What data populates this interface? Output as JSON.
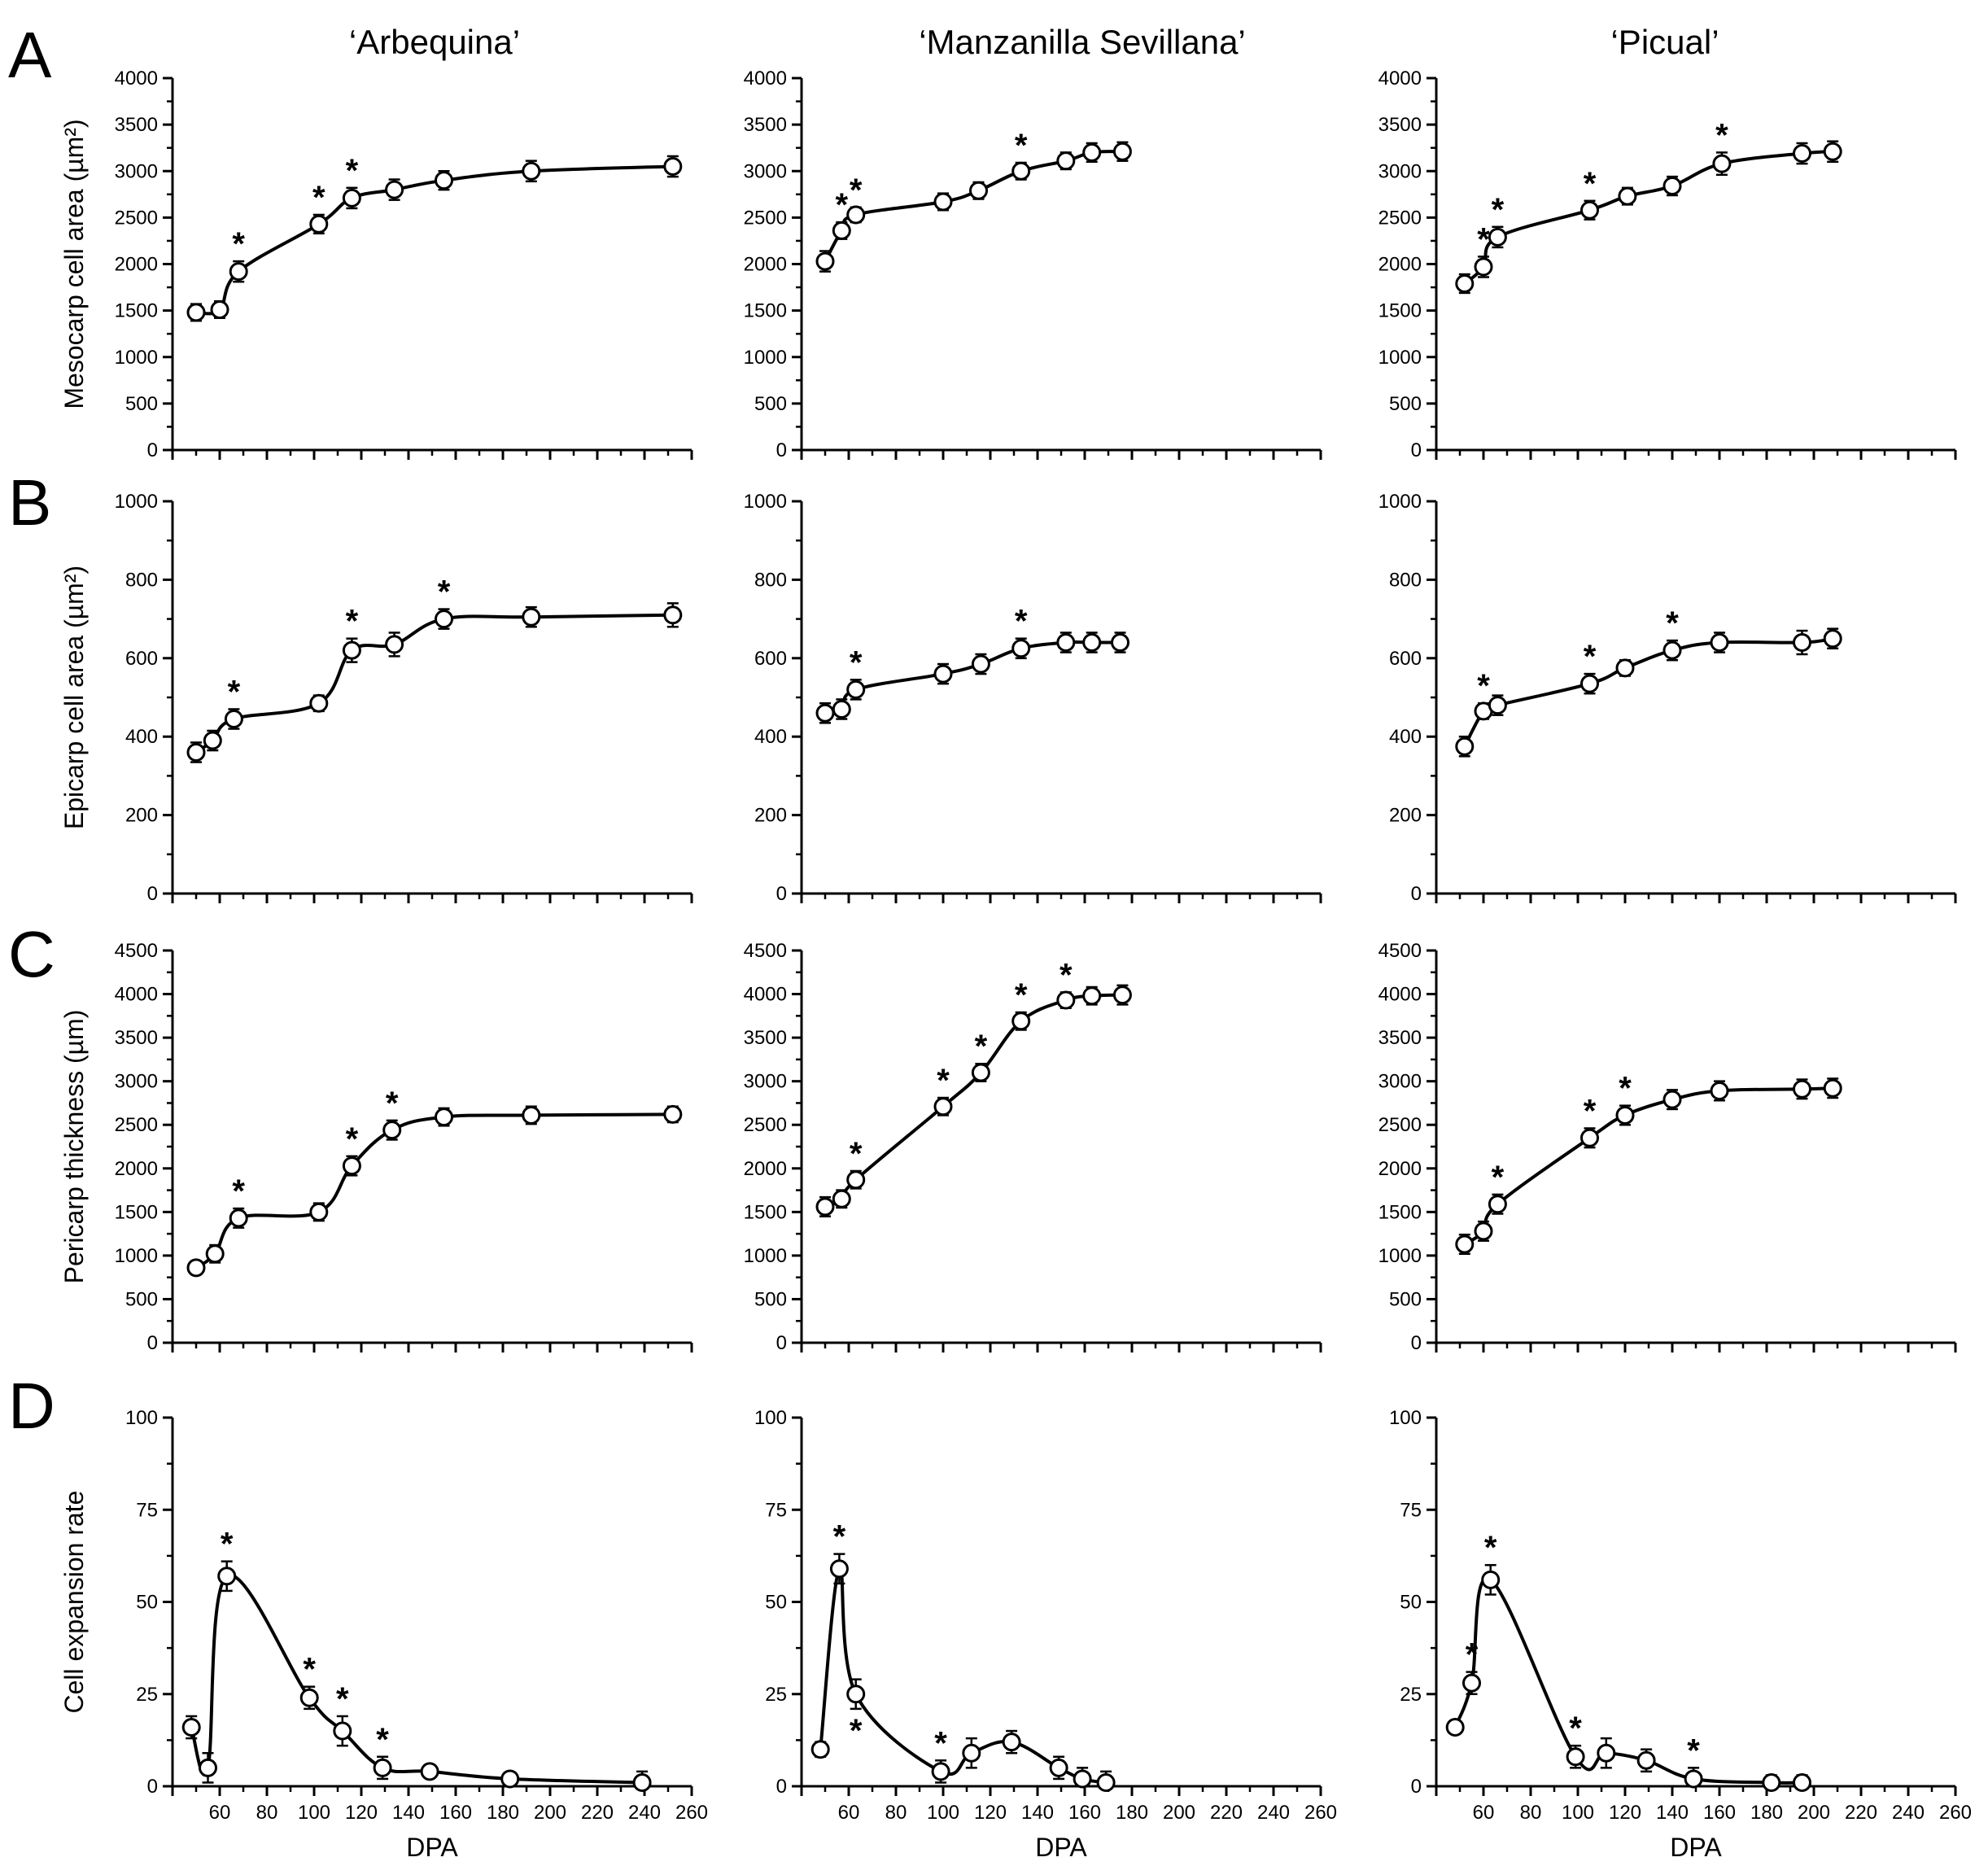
{
  "figure": {
    "column_titles": [
      "‘Arbequina’",
      "‘Manzanilla Sevillana’",
      "‘Picual’"
    ],
    "row_letters": [
      "A",
      "B",
      "C",
      "D"
    ],
    "x_axis_label": "DPA",
    "x_tick_labels": [
      "60",
      "80",
      "100",
      "120",
      "140",
      "160",
      "180",
      "200",
      "220",
      "240",
      "260"
    ]
  },
  "chart_data": [
    {
      "id": "A-arbequina",
      "type": "line",
      "row": "A",
      "col": "‘Arbequina’",
      "ylabel": "Mesocarp cell area (µm²)",
      "ylim": [
        0,
        4000
      ],
      "yticks": [
        0,
        500,
        1000,
        1500,
        2000,
        2500,
        3000,
        3500,
        4000
      ],
      "x": [
        50,
        60,
        68,
        102,
        116,
        134,
        155,
        192,
        252
      ],
      "y": [
        1480,
        1510,
        1920,
        2430,
        2710,
        2800,
        2900,
        3000,
        3050
      ],
      "err": [
        90,
        90,
        110,
        100,
        110,
        110,
        100,
        110,
        110
      ],
      "significant": [
        false,
        false,
        true,
        true,
        true,
        false,
        false,
        false,
        false
      ]
    },
    {
      "id": "A-manzanilla",
      "type": "line",
      "row": "A",
      "col": "‘Manzanilla Sevillana’",
      "ylabel": "",
      "ylim": [
        0,
        4000
      ],
      "yticks": [
        0,
        500,
        1000,
        1500,
        2000,
        2500,
        3000,
        3500,
        4000
      ],
      "x": [
        50,
        57,
        63,
        100,
        115,
        133,
        152,
        163,
        176
      ],
      "y": [
        2030,
        2360,
        2530,
        2670,
        2790,
        3000,
        3110,
        3200,
        3210
      ],
      "err": [
        110,
        90,
        80,
        90,
        90,
        90,
        90,
        100,
        100
      ],
      "significant": [
        false,
        true,
        true,
        false,
        false,
        true,
        false,
        false,
        false
      ]
    },
    {
      "id": "A-picual",
      "type": "line",
      "row": "A",
      "col": "‘Picual’",
      "ylabel": "",
      "ylim": [
        0,
        4000
      ],
      "yticks": [
        0,
        500,
        1000,
        1500,
        2000,
        2500,
        3000,
        3500,
        4000
      ],
      "x": [
        52,
        60,
        66,
        105,
        121,
        140,
        161,
        195,
        208
      ],
      "y": [
        1790,
        1970,
        2290,
        2580,
        2730,
        2840,
        3080,
        3190,
        3210
      ],
      "err": [
        100,
        110,
        110,
        100,
        90,
        100,
        120,
        110,
        110
      ],
      "significant": [
        false,
        true,
        true,
        true,
        false,
        false,
        true,
        false,
        false
      ]
    },
    {
      "id": "B-arbequina",
      "type": "line",
      "row": "B",
      "col": "‘Arbequina’",
      "ylabel": "Epicarp cell area (µm²)",
      "ylim": [
        0,
        1000
      ],
      "yticks": [
        0,
        200,
        400,
        600,
        800,
        1000
      ],
      "x": [
        50,
        57,
        66,
        102,
        116,
        134,
        155,
        192,
        252
      ],
      "y": [
        360,
        390,
        445,
        485,
        620,
        635,
        700,
        705,
        710
      ],
      "err": [
        25,
        25,
        25,
        20,
        30,
        30,
        25,
        25,
        30
      ],
      "significant": [
        false,
        false,
        true,
        false,
        true,
        false,
        true,
        false,
        false
      ]
    },
    {
      "id": "B-manzanilla",
      "type": "line",
      "row": "B",
      "col": "‘Manzanilla Sevillana’",
      "ylabel": "",
      "ylim": [
        0,
        1000
      ],
      "yticks": [
        0,
        200,
        400,
        600,
        800,
        1000
      ],
      "x": [
        50,
        57,
        63,
        100,
        116,
        133,
        152,
        163,
        175
      ],
      "y": [
        460,
        470,
        520,
        560,
        585,
        625,
        640,
        640,
        640
      ],
      "err": [
        25,
        25,
        25,
        25,
        25,
        25,
        25,
        25,
        25
      ],
      "significant": [
        false,
        false,
        true,
        false,
        false,
        true,
        false,
        false,
        false
      ]
    },
    {
      "id": "B-picual",
      "type": "line",
      "row": "B",
      "col": "‘Picual’",
      "ylabel": "",
      "ylim": [
        0,
        1000
      ],
      "yticks": [
        0,
        200,
        400,
        600,
        800,
        1000
      ],
      "x": [
        52,
        60,
        66,
        105,
        120,
        140,
        160,
        195,
        208
      ],
      "y": [
        375,
        465,
        480,
        535,
        575,
        620,
        640,
        640,
        650
      ],
      "err": [
        25,
        20,
        25,
        25,
        20,
        25,
        25,
        30,
        25
      ],
      "significant": [
        false,
        true,
        false,
        true,
        false,
        true,
        false,
        false,
        false
      ]
    },
    {
      "id": "C-arbequina",
      "type": "line",
      "row": "C",
      "col": "‘Arbequina’",
      "ylabel": "Pericarp thickness (µm)",
      "ylim": [
        0,
        4500
      ],
      "yticks": [
        0,
        500,
        1000,
        1500,
        2000,
        2500,
        3000,
        3500,
        4000,
        4500
      ],
      "x": [
        50,
        58,
        68,
        102,
        116,
        133,
        155,
        192,
        252
      ],
      "y": [
        860,
        1020,
        1430,
        1500,
        2030,
        2440,
        2590,
        2610,
        2620
      ],
      "err": [
        70,
        100,
        110,
        100,
        110,
        110,
        100,
        100,
        90
      ],
      "significant": [
        false,
        false,
        true,
        false,
        true,
        true,
        false,
        false,
        false
      ]
    },
    {
      "id": "C-manzanilla",
      "type": "line",
      "row": "C",
      "col": "‘Manzanilla Sevillana’",
      "ylabel": "",
      "ylim": [
        0,
        4500
      ],
      "yticks": [
        0,
        500,
        1000,
        1500,
        2000,
        2500,
        3000,
        3500,
        4000,
        4500
      ],
      "x": [
        50,
        57,
        63,
        100,
        116,
        133,
        152,
        163,
        176
      ],
      "y": [
        1560,
        1650,
        1870,
        2710,
        3100,
        3690,
        3930,
        3980,
        3990
      ],
      "err": [
        110,
        100,
        100,
        100,
        100,
        100,
        90,
        100,
        110
      ],
      "significant": [
        false,
        false,
        true,
        true,
        true,
        true,
        true,
        false,
        false
      ]
    },
    {
      "id": "C-picual",
      "type": "line",
      "row": "C",
      "col": "‘Picual’",
      "ylabel": "",
      "ylim": [
        0,
        4500
      ],
      "yticks": [
        0,
        500,
        1000,
        1500,
        2000,
        2500,
        3000,
        3500,
        4000,
        4500
      ],
      "x": [
        52,
        60,
        66,
        105,
        120,
        140,
        160,
        195,
        208
      ],
      "y": [
        1130,
        1280,
        1590,
        2350,
        2610,
        2790,
        2890,
        2910,
        2920
      ],
      "err": [
        110,
        110,
        110,
        110,
        110,
        110,
        110,
        110,
        110
      ],
      "significant": [
        false,
        false,
        true,
        true,
        true,
        false,
        false,
        false,
        false
      ]
    },
    {
      "id": "D-arbequina",
      "type": "line",
      "row": "D",
      "col": "‘Arbequina’",
      "ylabel": "Cell expansion rate",
      "xlabel": "DPA",
      "ylim": [
        0,
        100
      ],
      "yticks": [
        0,
        25,
        50,
        75,
        100
      ],
      "x": [
        48,
        55,
        63,
        98,
        112,
        129,
        149,
        183,
        239
      ],
      "y": [
        16,
        5,
        57,
        24,
        15,
        5,
        4,
        2,
        1
      ],
      "err": [
        3,
        4,
        4,
        3,
        4,
        3,
        1,
        1,
        3
      ],
      "significant": [
        false,
        false,
        true,
        true,
        true,
        true,
        false,
        false,
        false
      ]
    },
    {
      "id": "D-manzanilla",
      "type": "line",
      "row": "D",
      "col": "‘Manzanilla Sevillana’",
      "ylabel": "",
      "xlabel": "DPA",
      "ylim": [
        0,
        100
      ],
      "yticks": [
        0,
        25,
        50,
        75,
        100
      ],
      "x": [
        48,
        56,
        63,
        99,
        112,
        129,
        149,
        159,
        169
      ],
      "y": [
        10,
        59,
        25,
        4,
        9,
        12,
        5,
        2,
        1
      ],
      "err": [
        2,
        4,
        4,
        3,
        4,
        3,
        3,
        3,
        3
      ],
      "significant": [
        false,
        true,
        true,
        true,
        false,
        false,
        false,
        false,
        false
      ],
      "star_below": [
        false,
        false,
        true,
        false,
        false,
        false,
        false,
        false,
        false
      ]
    },
    {
      "id": "D-picual",
      "type": "line",
      "row": "D",
      "col": "‘Picual’",
      "ylabel": "",
      "xlabel": "DPA",
      "ylim": [
        0,
        100
      ],
      "yticks": [
        0,
        25,
        50,
        75,
        100
      ],
      "x": [
        48,
        55,
        63,
        99,
        112,
        129,
        149,
        182,
        195
      ],
      "y": [
        16,
        28,
        56,
        8,
        9,
        7,
        2,
        1,
        1
      ],
      "err": [
        1,
        3,
        4,
        3,
        4,
        3,
        3,
        2,
        2
      ],
      "significant": [
        false,
        true,
        true,
        true,
        false,
        false,
        true,
        false,
        false
      ]
    }
  ]
}
